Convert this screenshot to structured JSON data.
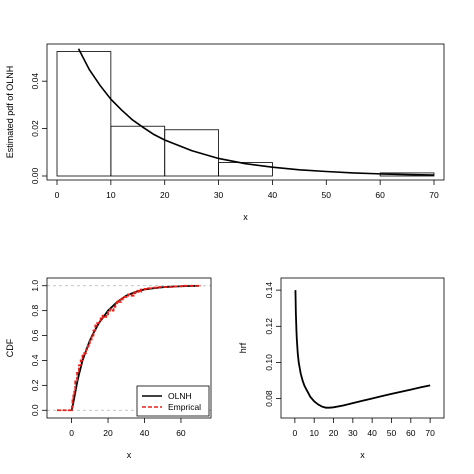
{
  "colors": {
    "frame": "#000000",
    "model_curve": "#000000",
    "empirical": "#e8201a",
    "reference": "#b0b0b0"
  },
  "chart_data": [
    {
      "id": "pdf-panel",
      "type": "bar",
      "title": "",
      "xlabel": "x",
      "ylabel": "Estimated pdf of OLNH",
      "xlim": [
        0,
        70
      ],
      "ylim": [
        0,
        0.054
      ],
      "x_ticks": [
        0,
        10,
        20,
        30,
        40,
        50,
        60,
        70
      ],
      "y_ticks": [
        0.0,
        0.02,
        0.04
      ],
      "y_tick_labels": [
        "0.00",
        "0.02",
        "0.04"
      ],
      "grid": false,
      "bins": [
        {
          "x0": 0,
          "x1": 10,
          "density": 0.0525
        },
        {
          "x0": 10,
          "x1": 20,
          "density": 0.021
        },
        {
          "x0": 20,
          "x1": 30,
          "density": 0.0195
        },
        {
          "x0": 30,
          "x1": 40,
          "density": 0.0057
        },
        {
          "x0": 40,
          "x1": 50,
          "density": 0.0
        },
        {
          "x0": 50,
          "x1": 60,
          "density": 0.0
        },
        {
          "x0": 60,
          "x1": 70,
          "density": 0.0013
        }
      ],
      "curve": {
        "x": [
          4,
          6,
          8,
          10,
          12,
          14,
          16,
          18,
          20,
          25,
          30,
          35,
          40,
          45,
          50,
          55,
          60,
          65,
          70
        ],
        "y": [
          0.0537,
          0.0449,
          0.0382,
          0.0324,
          0.0278,
          0.0237,
          0.0205,
          0.0175,
          0.0152,
          0.0107,
          0.0074,
          0.0052,
          0.0037,
          0.0026,
          0.0019,
          0.0013,
          0.0009,
          0.0006,
          0.0004
        ]
      }
    },
    {
      "id": "cdf-panel",
      "type": "line",
      "title": "",
      "xlabel": "x",
      "ylabel": "CDF",
      "xlim": [
        -8,
        71
      ],
      "ylim": [
        -0.03,
        1.03
      ],
      "x_ticks": [
        0,
        20,
        40,
        60
      ],
      "y_ticks": [
        0.0,
        0.2,
        0.4,
        0.6,
        0.8,
        1.0
      ],
      "y_tick_labels": [
        "0.0",
        "0.2",
        "0.4",
        "0.6",
        "0.8",
        "1.0"
      ],
      "grid": false,
      "reference_lines_y": [
        0,
        1
      ],
      "legend": {
        "position": "bottom-right",
        "entries": [
          "OLNH",
          "Emprical"
        ]
      },
      "series": [
        {
          "name": "OLNH",
          "style": "solid",
          "x": [
            0,
            0.5,
            1,
            2,
            3,
            4,
            5,
            6,
            8,
            10,
            12,
            15,
            18,
            20,
            25,
            30,
            35,
            40,
            45,
            50,
            55,
            60,
            65,
            70
          ],
          "y": [
            0.0,
            0.025,
            0.065,
            0.14,
            0.22,
            0.285,
            0.34,
            0.4,
            0.48,
            0.56,
            0.62,
            0.7,
            0.76,
            0.8,
            0.87,
            0.92,
            0.95,
            0.97,
            0.98,
            0.988,
            0.993,
            0.996,
            0.998,
            0.999
          ]
        },
        {
          "name": "Emprical",
          "style": "dashed-steps",
          "x": [
            -8,
            0,
            0.2,
            0.5,
            1,
            1.5,
            2,
            3,
            4,
            5,
            6,
            7,
            8,
            9,
            10,
            11,
            12,
            13,
            14,
            15,
            16,
            17,
            18,
            19,
            20,
            21,
            22,
            23,
            24,
            25,
            26,
            27,
            28,
            29,
            30,
            31,
            33,
            34,
            35,
            37,
            38,
            40,
            42,
            45,
            48,
            50,
            55,
            60,
            62,
            71
          ],
          "y": [
            0.0,
            0.0,
            0.03,
            0.08,
            0.12,
            0.17,
            0.24,
            0.3,
            0.36,
            0.4,
            0.44,
            0.46,
            0.49,
            0.52,
            0.56,
            0.6,
            0.64,
            0.68,
            0.7,
            0.72,
            0.74,
            0.76,
            0.75,
            0.77,
            0.79,
            0.81,
            0.8,
            0.83,
            0.86,
            0.88,
            0.87,
            0.89,
            0.9,
            0.91,
            0.92,
            0.93,
            0.92,
            0.94,
            0.96,
            0.95,
            0.97,
            0.975,
            0.98,
            0.985,
            0.99,
            0.99,
            0.995,
            0.997,
            1.0,
            1.0
          ]
        }
      ]
    },
    {
      "id": "hrf-panel",
      "type": "line",
      "title": "",
      "xlabel": "x",
      "ylabel": "hrf",
      "xlim": [
        -2,
        72
      ],
      "ylim": [
        0.0715,
        0.1445
      ],
      "x_ticks": [
        0,
        10,
        20,
        30,
        40,
        50,
        60,
        70
      ],
      "y_ticks": [
        0.08,
        0.1,
        0.12,
        0.14
      ],
      "y_tick_labels": [
        "0.08",
        "0.10",
        "0.12",
        "0.14"
      ],
      "grid": false,
      "series": [
        {
          "name": "",
          "style": "solid",
          "x": [
            0.3,
            0.5,
            0.8,
            1,
            1.5,
            2,
            3,
            4,
            5,
            6,
            8,
            10,
            12,
            14,
            16,
            18,
            20,
            25,
            30,
            35,
            40,
            45,
            50,
            55,
            60,
            65,
            70
          ],
          "y": [
            0.14,
            0.128,
            0.118,
            0.113,
            0.105,
            0.1,
            0.094,
            0.09,
            0.087,
            0.085,
            0.081,
            0.0785,
            0.0768,
            0.0756,
            0.075,
            0.075,
            0.0752,
            0.0762,
            0.0775,
            0.0788,
            0.0801,
            0.0814,
            0.0826,
            0.0838,
            0.085,
            0.0862,
            0.0873
          ]
        }
      ]
    }
  ]
}
